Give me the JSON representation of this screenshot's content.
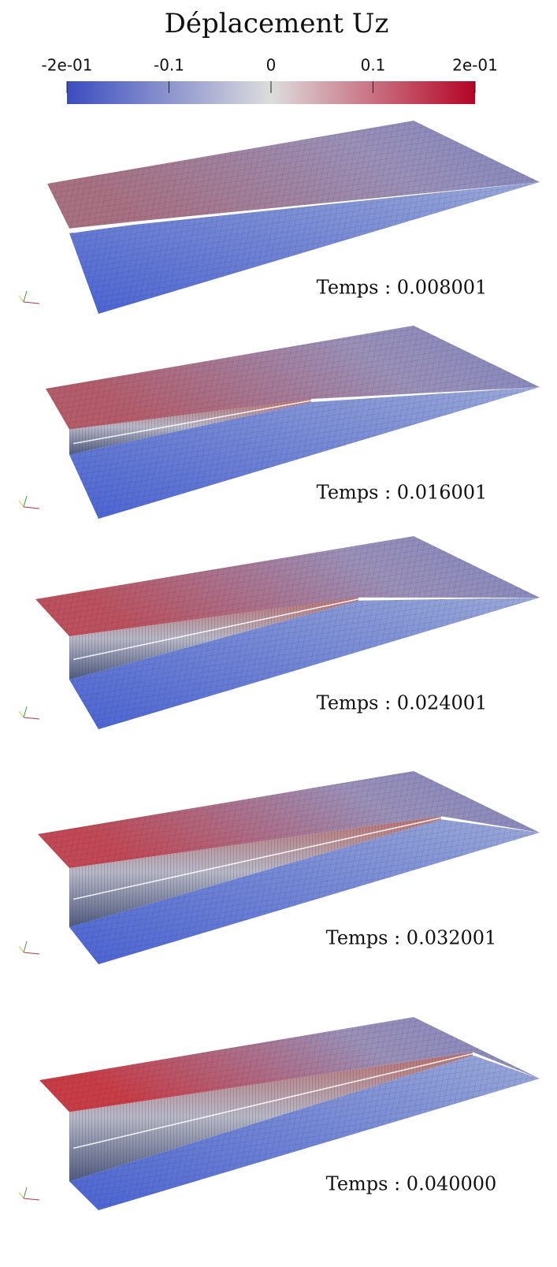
{
  "title": "Déplacement Uz",
  "colorbar": {
    "range": [
      -0.2,
      0.2
    ],
    "ticks": [
      {
        "value": -0.2,
        "label": "-2e-01"
      },
      -0.1,
      0,
      0.1,
      {
        "value": 0.2,
        "label": "2e-01"
      }
    ],
    "colors": [
      "#3b4cc0",
      "#dddddd",
      "#b40426"
    ]
  },
  "frames": [
    "Temps : 0.008001",
    "Temps : 0.016001",
    "Temps : 0.024001",
    "Temps : 0.032001",
    "Temps : 0.040000"
  ]
}
